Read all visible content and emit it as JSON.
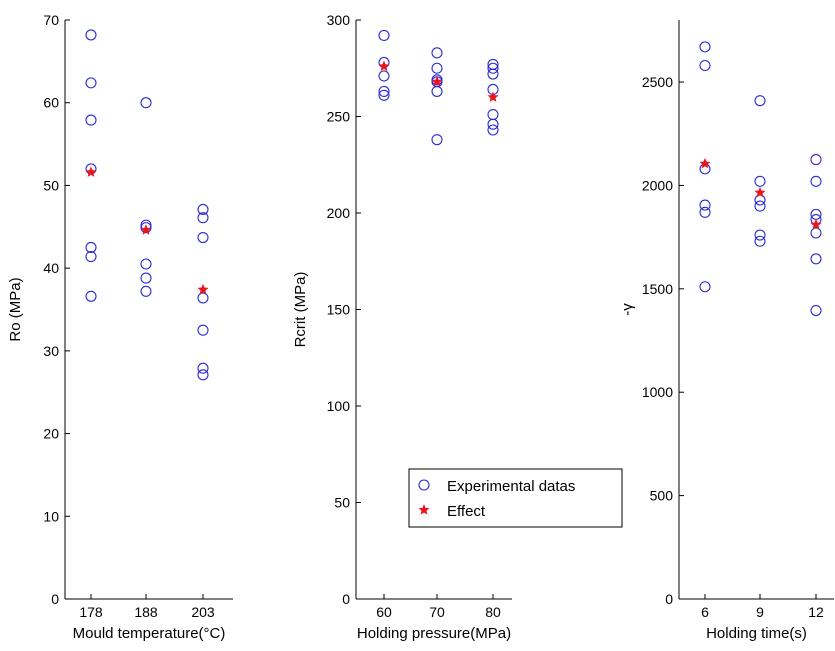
{
  "chart_data": [
    {
      "type": "scatter",
      "xlabel": "Mould temperature(°C)",
      "ylabel": "Ro (MPa)",
      "categories": [
        "178",
        "188",
        "203"
      ],
      "ylim": [
        0,
        70
      ],
      "yticks": [
        0,
        10,
        20,
        30,
        40,
        50,
        60,
        70
      ],
      "series": [
        {
          "name": "Experimental datas",
          "marker": "circle",
          "points": [
            [
              178,
              68.2
            ],
            [
              178,
              62.4
            ],
            [
              178,
              57.9
            ],
            [
              178,
              52.0
            ],
            [
              178,
              42.5
            ],
            [
              178,
              41.4
            ],
            [
              178,
              36.6
            ],
            [
              188,
              60.0
            ],
            [
              188,
              45.2
            ],
            [
              188,
              44.9
            ],
            [
              188,
              40.5
            ],
            [
              188,
              38.8
            ],
            [
              188,
              37.2
            ],
            [
              203,
              47.1
            ],
            [
              203,
              46.1
            ],
            [
              203,
              43.7
            ],
            [
              203,
              36.4
            ],
            [
              203,
              32.5
            ],
            [
              203,
              27.9
            ],
            [
              203,
              27.1
            ]
          ]
        },
        {
          "name": "Effect",
          "marker": "star",
          "points": [
            [
              178,
              51.6
            ],
            [
              188,
              44.6
            ],
            [
              203,
              37.4
            ]
          ]
        }
      ]
    },
    {
      "type": "scatter",
      "xlabel": "Holding pressure(MPa)",
      "ylabel": "Rcrit (MPa)",
      "categories": [
        "60",
        "70",
        "80"
      ],
      "ylim": [
        0,
        300
      ],
      "yticks": [
        0,
        50,
        100,
        150,
        200,
        250,
        300
      ],
      "series": [
        {
          "name": "Experimental datas",
          "marker": "circle",
          "points": [
            [
              60,
              292
            ],
            [
              60,
              278
            ],
            [
              60,
              271
            ],
            [
              60,
              263
            ],
            [
              60,
              261
            ],
            [
              70,
              283
            ],
            [
              70,
              275
            ],
            [
              70,
              269
            ],
            [
              70,
              268
            ],
            [
              70,
              263
            ],
            [
              70,
              238
            ],
            [
              80,
              277
            ],
            [
              80,
              275
            ],
            [
              80,
              272
            ],
            [
              80,
              264
            ],
            [
              80,
              251
            ],
            [
              80,
              246
            ],
            [
              80,
              243
            ]
          ]
        },
        {
          "name": "Effect",
          "marker": "star",
          "points": [
            [
              60,
              276
            ],
            [
              70,
              268
            ],
            [
              80,
              260
            ]
          ]
        }
      ],
      "legend": {
        "position": "lower-right",
        "entries": [
          "Experimental datas",
          "Effect"
        ]
      }
    },
    {
      "type": "scatter",
      "xlabel": "Holding time(s)",
      "ylabel": "-γ",
      "categories": [
        "6",
        "9",
        "12"
      ],
      "ylim": [
        0,
        2800
      ],
      "yticks": [
        0,
        500,
        1000,
        1500,
        2000,
        2500
      ],
      "series": [
        {
          "name": "Experimental datas",
          "marker": "circle",
          "points": [
            [
              6,
              2670
            ],
            [
              6,
              2580
            ],
            [
              6,
              2080
            ],
            [
              6,
              1905
            ],
            [
              6,
              1870
            ],
            [
              6,
              1510
            ],
            [
              9,
              2410
            ],
            [
              9,
              2020
            ],
            [
              9,
              1930
            ],
            [
              9,
              1900
            ],
            [
              9,
              1760
            ],
            [
              9,
              1730
            ],
            [
              12,
              2125
            ],
            [
              12,
              2020
            ],
            [
              12,
              1860
            ],
            [
              12,
              1835
            ],
            [
              12,
              1770
            ],
            [
              12,
              1645
            ],
            [
              12,
              1395
            ]
          ]
        },
        {
          "name": "Effect",
          "marker": "star",
          "points": [
            [
              6,
              2105
            ],
            [
              9,
              1965
            ],
            [
              12,
              1810
            ]
          ]
        }
      ]
    }
  ],
  "colors": {
    "marker": "#2b2bd6",
    "effect": "#e8141e",
    "axis": "#000000"
  }
}
